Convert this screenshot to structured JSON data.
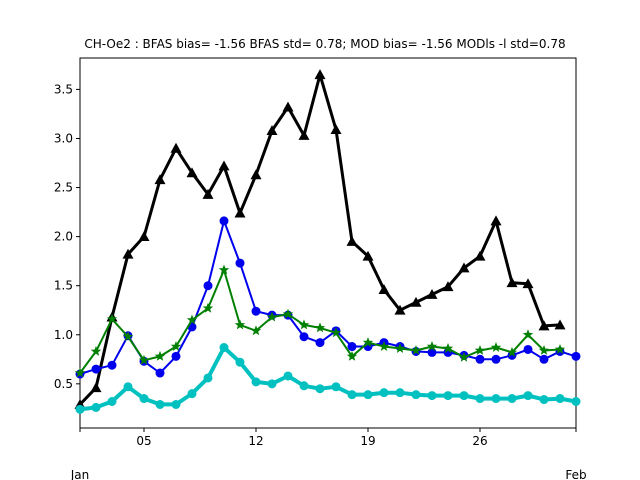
{
  "chart_data": {
    "type": "line",
    "title": "CH-Oe2   : BFAS bias= -1.56 BFAS std= 0.78; MOD bias= -1.56 MODls -l std=0.78",
    "xlabel": "",
    "ylabel": "",
    "x_day_range": [
      1,
      32
    ],
    "ylim": [
      0.05,
      3.82
    ],
    "grid": false,
    "legend": "none",
    "x_ticks": [
      {
        "day": 5,
        "label": "05"
      },
      {
        "day": 12,
        "label": "12"
      },
      {
        "day": 19,
        "label": "19"
      },
      {
        "day": 26,
        "label": "26"
      }
    ],
    "x_month_labels": [
      {
        "day": 1,
        "label": "Jan"
      },
      {
        "day": 32,
        "label": "Feb"
      }
    ],
    "y_ticks": [
      0.5,
      1.0,
      1.5,
      2.0,
      2.5,
      3.0,
      3.5
    ],
    "y_tick_labels": [
      "0.5",
      "1.0",
      "1.5",
      "2.0",
      "2.5",
      "3.0",
      "3.5"
    ],
    "series": [
      {
        "color": "#000000",
        "marker": "triangle",
        "width": 3,
        "x": [
          1,
          2,
          3,
          4,
          5,
          6,
          7,
          8,
          9,
          10,
          11,
          12,
          13,
          14,
          15,
          16,
          17,
          18,
          19,
          20,
          21,
          22,
          23,
          24,
          25,
          26,
          27,
          28,
          29,
          30,
          31
        ],
        "values": [
          0.29,
          0.46,
          1.18,
          1.82,
          2.0,
          2.58,
          2.9,
          2.65,
          2.43,
          2.72,
          2.24,
          2.63,
          3.08,
          3.32,
          3.03,
          3.65,
          3.09,
          1.95,
          1.8,
          1.46,
          1.25,
          1.33,
          1.41,
          1.49,
          1.68,
          1.8,
          2.16,
          1.53,
          1.52,
          1.09,
          1.1
        ]
      },
      {
        "color": "#0000ee",
        "marker": "circle",
        "width": 2,
        "x": [
          1,
          2,
          3,
          4,
          5,
          6,
          7,
          8,
          9,
          10,
          11,
          12,
          13,
          14,
          15,
          16,
          17,
          18,
          19,
          20,
          21,
          22,
          23,
          24,
          25,
          26,
          27,
          28,
          29,
          30,
          31,
          32
        ],
        "values": [
          0.6,
          0.65,
          0.69,
          0.99,
          0.73,
          0.61,
          0.78,
          1.08,
          1.5,
          2.16,
          1.73,
          1.24,
          1.2,
          1.2,
          0.98,
          0.92,
          1.04,
          0.88,
          0.88,
          0.92,
          0.88,
          0.83,
          0.82,
          0.82,
          0.79,
          0.75,
          0.75,
          0.79,
          0.85,
          0.75,
          0.83,
          0.78
        ]
      },
      {
        "color": "#008000",
        "marker": "star",
        "width": 2,
        "x": [
          1,
          2,
          3,
          4,
          5,
          6,
          7,
          8,
          9,
          10,
          11,
          12,
          13,
          14,
          15,
          16,
          17,
          18,
          19,
          20,
          21,
          22,
          23,
          24,
          25,
          26,
          27,
          28,
          29,
          30,
          31
        ],
        "values": [
          0.61,
          0.83,
          1.16,
          0.98,
          0.74,
          0.78,
          0.88,
          1.15,
          1.27,
          1.66,
          1.1,
          1.04,
          1.18,
          1.21,
          1.1,
          1.07,
          1.02,
          0.78,
          0.92,
          0.88,
          0.86,
          0.84,
          0.88,
          0.86,
          0.77,
          0.84,
          0.87,
          0.82,
          1.0,
          0.84,
          0.85
        ]
      },
      {
        "color": "#00c0c0",
        "marker": "circle",
        "width": 4,
        "x": [
          1,
          2,
          3,
          4,
          5,
          6,
          7,
          8,
          9,
          10,
          11,
          12,
          13,
          14,
          15,
          16,
          17,
          18,
          19,
          20,
          21,
          22,
          23,
          24,
          25,
          26,
          27,
          28,
          29,
          30,
          31,
          32
        ],
        "values": [
          0.24,
          0.26,
          0.32,
          0.47,
          0.35,
          0.29,
          0.29,
          0.4,
          0.56,
          0.87,
          0.72,
          0.52,
          0.5,
          0.58,
          0.48,
          0.45,
          0.47,
          0.39,
          0.39,
          0.41,
          0.41,
          0.39,
          0.38,
          0.38,
          0.38,
          0.35,
          0.35,
          0.35,
          0.38,
          0.34,
          0.35,
          0.32
        ]
      }
    ]
  }
}
